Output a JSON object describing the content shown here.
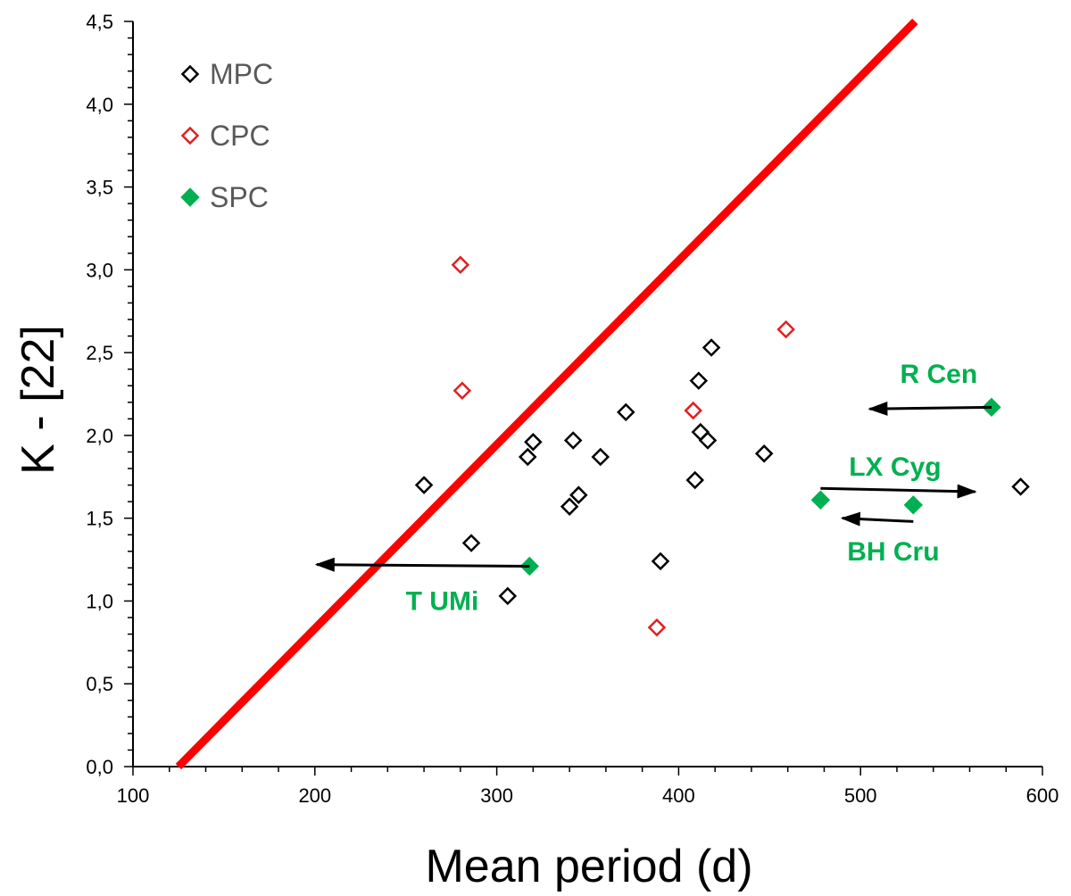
{
  "chart_data": {
    "type": "scatter",
    "title": "",
    "xlabel": "Mean period (d)",
    "ylabel": "K - [22]",
    "xlim": [
      100,
      600
    ],
    "ylim": [
      0,
      4.5
    ],
    "x_ticks": [
      100,
      200,
      300,
      400,
      500,
      600
    ],
    "y_ticks": [
      0,
      0.5,
      1.0,
      1.5,
      2.0,
      2.5,
      3.0,
      3.5,
      4.0,
      4.5
    ],
    "x_tick_labels": [
      "100",
      "200",
      "300",
      "400",
      "500",
      "600"
    ],
    "y_tick_labels": [
      "0,0",
      "0,5",
      "1,0",
      "1,5",
      "2,0",
      "2,5",
      "3,0",
      "3,5",
      "4,0",
      "4,5"
    ],
    "grid": false,
    "legend_position": "top-left",
    "series": [
      {
        "name": "MPC",
        "marker": "diamond-open",
        "color": "#000000",
        "points": [
          [
            260,
            1.7
          ],
          [
            286,
            1.35
          ],
          [
            306,
            1.03
          ],
          [
            317,
            1.87
          ],
          [
            320,
            1.96
          ],
          [
            340,
            1.57
          ],
          [
            342,
            1.97
          ],
          [
            345,
            1.64
          ],
          [
            357,
            1.87
          ],
          [
            371,
            2.14
          ],
          [
            390,
            1.24
          ],
          [
            409,
            1.73
          ],
          [
            411,
            2.33
          ],
          [
            412,
            2.02
          ],
          [
            416,
            1.97
          ],
          [
            418,
            2.53
          ],
          [
            447,
            1.89
          ],
          [
            588,
            1.69
          ]
        ]
      },
      {
        "name": "CPC",
        "marker": "diamond-open",
        "color": "#e02020",
        "points": [
          [
            280,
            3.03
          ],
          [
            281,
            2.27
          ],
          [
            388,
            0.84
          ],
          [
            408,
            2.15
          ],
          [
            459,
            2.64
          ]
        ]
      },
      {
        "name": "SPC",
        "marker": "diamond-filled",
        "color": "#00b050",
        "points": [
          [
            318,
            1.21
          ],
          [
            478,
            1.61
          ],
          [
            529,
            1.58
          ],
          [
            572,
            2.17
          ]
        ]
      }
    ],
    "line": {
      "name": "separation line",
      "color": "#ff0000",
      "from": [
        125,
        0
      ],
      "to": [
        530,
        4.5
      ]
    },
    "arrows": [
      {
        "label": "R Cen",
        "from": [
          572,
          2.17
        ],
        "to": [
          505,
          2.16
        ]
      },
      {
        "label": "LX Cyg",
        "from": [
          478,
          1.68
        ],
        "to": [
          563,
          1.66
        ]
      },
      {
        "label": "BH Cru",
        "from": [
          529,
          1.48
        ],
        "to": [
          490,
          1.5
        ]
      },
      {
        "label": "T UMi",
        "from": [
          318,
          1.21
        ],
        "to": [
          201,
          1.22
        ]
      }
    ],
    "annotations": [
      {
        "text": "R Cen",
        "x": 543,
        "y": 2.37
      },
      {
        "text": "LX Cyg",
        "x": 519,
        "y": 1.81
      },
      {
        "text": "BH Cru",
        "x": 518,
        "y": 1.3
      },
      {
        "text": "T UMi",
        "x": 270,
        "y": 1.0
      }
    ]
  }
}
